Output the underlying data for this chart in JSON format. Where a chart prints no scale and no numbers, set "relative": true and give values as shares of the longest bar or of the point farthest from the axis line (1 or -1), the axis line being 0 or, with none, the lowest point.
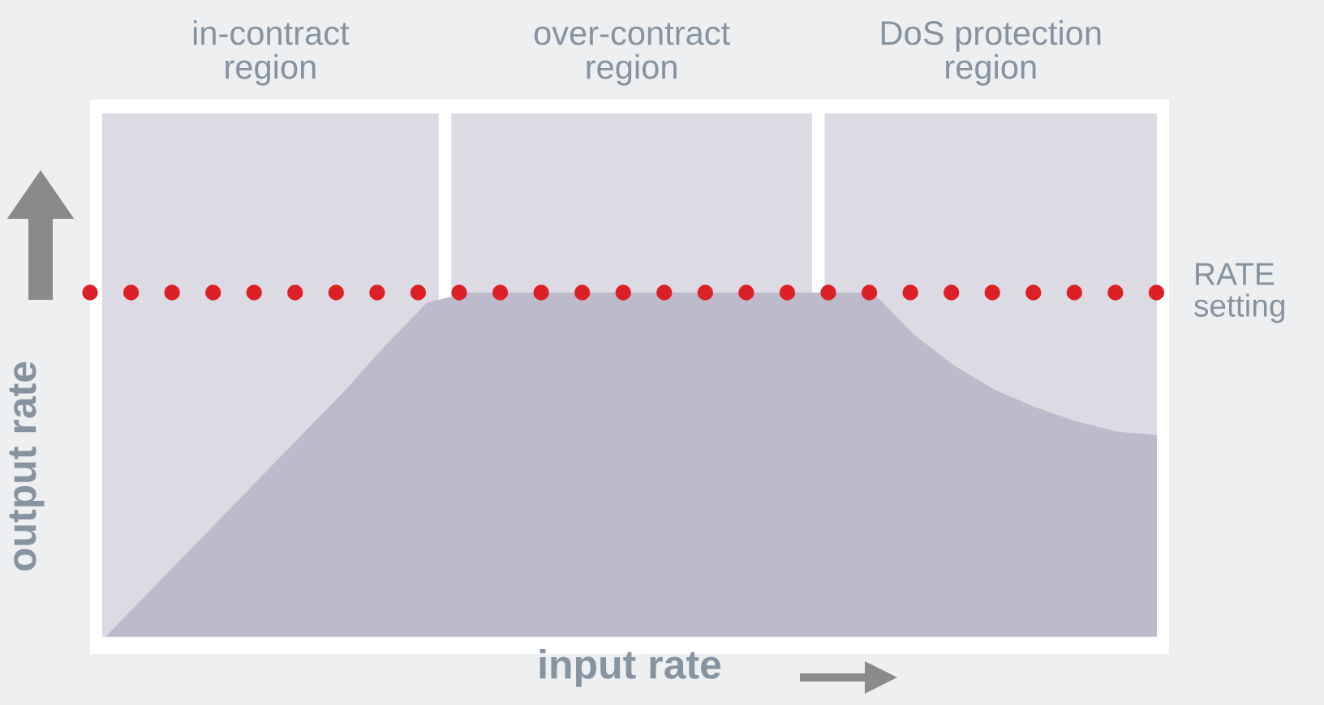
{
  "chart_data": {
    "type": "area",
    "relative": true,
    "xlabel": "input rate",
    "ylabel": "output rate",
    "categories": [
      null,
      null,
      null,
      null,
      null,
      null,
      null,
      null,
      null,
      null,
      null,
      null,
      null,
      null,
      null,
      null,
      null,
      null,
      null,
      null,
      null,
      null,
      null,
      null,
      null,
      null,
      null
    ],
    "series": [
      {
        "color": "#bcbacb",
        "values": [
          0,
          0.12,
          0.24,
          0.36,
          0.48,
          0.6,
          0.72,
          0.85,
          0.97,
          1,
          1,
          1,
          1,
          1,
          1,
          1,
          1,
          1,
          1,
          1,
          0.88,
          0.79,
          0.72,
          0.67,
          0.63,
          0.6,
          0.59
        ]
      }
    ],
    "annotations": [
      "in-contract\nregion",
      "over-contract\nregion",
      "DoS protection\nregion"
    ],
    "ref_lines": [
      {
        "axis": "y",
        "value": 1,
        "label": "RATE\nsetting",
        "color": "#dd2027",
        "line_style": "dotted"
      }
    ],
    "legend": false
  }
}
